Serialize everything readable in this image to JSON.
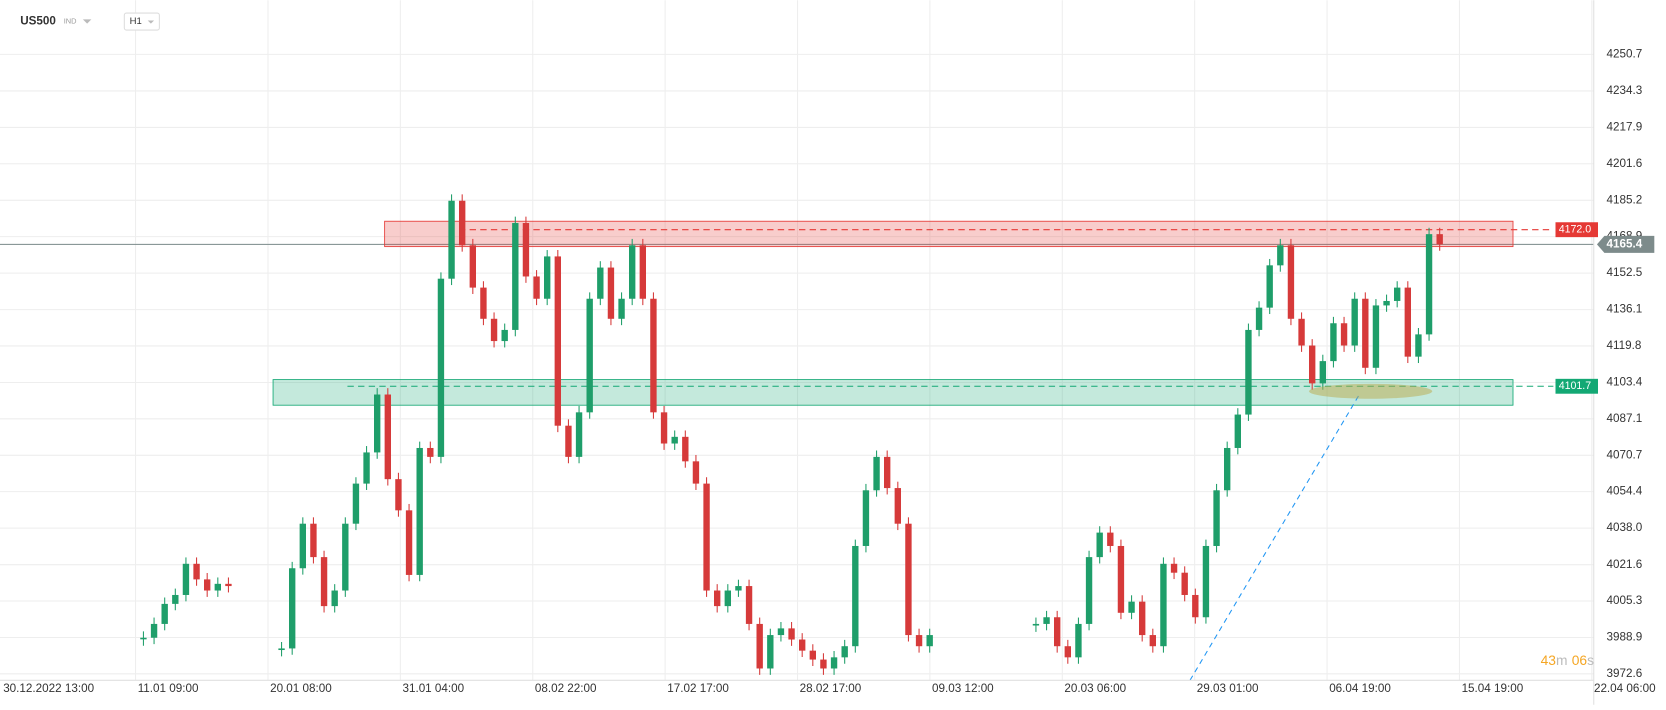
{
  "header": {
    "symbol": "US500",
    "market": "IND",
    "interval": "H1"
  },
  "chart_data": {
    "type": "candlestick",
    "values": [
      3988.8,
      3995,
      4004,
      4008,
      4022,
      4015,
      4010,
      4013,
      4012,
      null,
      null,
      null,
      null,
      3984,
      4020,
      4040,
      4025,
      4003,
      4010,
      4040,
      4058,
      4072,
      4098,
      4060,
      4046,
      4017,
      4074,
      4070,
      4150,
      4185,
      4165,
      4146,
      4132,
      4122,
      4127,
      4175,
      4151,
      4141,
      4160,
      4084,
      4070,
      4090,
      4141,
      4155,
      4132,
      4141,
      4165,
      4141,
      4090,
      4076,
      4079,
      4068,
      4058,
      4010,
      4003,
      4010,
      4012,
      3995,
      3975,
      3990,
      3993,
      3988,
      3983,
      3979,
      3975,
      3980,
      3985,
      4030,
      4055,
      4070,
      4056,
      4040,
      3990,
      3985,
      3990,
      null,
      null,
      null,
      null,
      null,
      null,
      null,
      null,
      null,
      3995,
      3998,
      3985,
      3980,
      3995,
      4025,
      4036,
      4030,
      4000,
      4005,
      3990,
      3985,
      4022,
      4018,
      4008,
      3998,
      4030,
      4055,
      4074,
      4089,
      4127,
      4137,
      4156,
      4165,
      4132,
      4120,
      4103,
      4113,
      4130,
      4120,
      4141,
      4110,
      4138,
      4140,
      4146,
      4115,
      4125,
      4170,
      4165.4
    ],
    "up_color": "#1f9e6a",
    "down_color": "#d63a3a",
    "ylim": [
      3969.7,
      4275.0
    ],
    "yticks": [
      4250.7,
      4234.3,
      4217.9,
      4201.6,
      4185.2,
      4168.9,
      4152.5,
      4136.1,
      4119.8,
      4103.4,
      4087.1,
      4070.7,
      4054.4,
      {
        "value": 4038,
        "label": "4038.0"
      },
      4021.6,
      4005.3,
      3988.9,
      3972.6
    ],
    "xticklabels": [
      "30.12.2022 13:00",
      "11.01 09:00",
      "20.01 08:00",
      "31.01 04:00",
      "08.02 22:00",
      "17.02 17:00",
      "28.02 17:00",
      "09.03 12:00",
      "20.03 06:00",
      "29.03 01:00",
      "06.04 19:00",
      "15.04 19:00",
      "22.04 06:00"
    ],
    "grid": true,
    "resistance": {
      "low": 4164.4,
      "high": 4175.8,
      "level": 4172.0,
      "label": "4172.0",
      "color": "#e53935"
    },
    "support": {
      "low": 4093.2,
      "high": 4104.7,
      "level": 4101.7,
      "label": "4101.7",
      "color": "#13a874"
    },
    "last_price": {
      "value": 4165.4,
      "label": "4165.4"
    }
  },
  "timer": {
    "minutes": "43",
    "minutes_unit": "m",
    "seconds": "06",
    "seconds_unit": "s"
  }
}
